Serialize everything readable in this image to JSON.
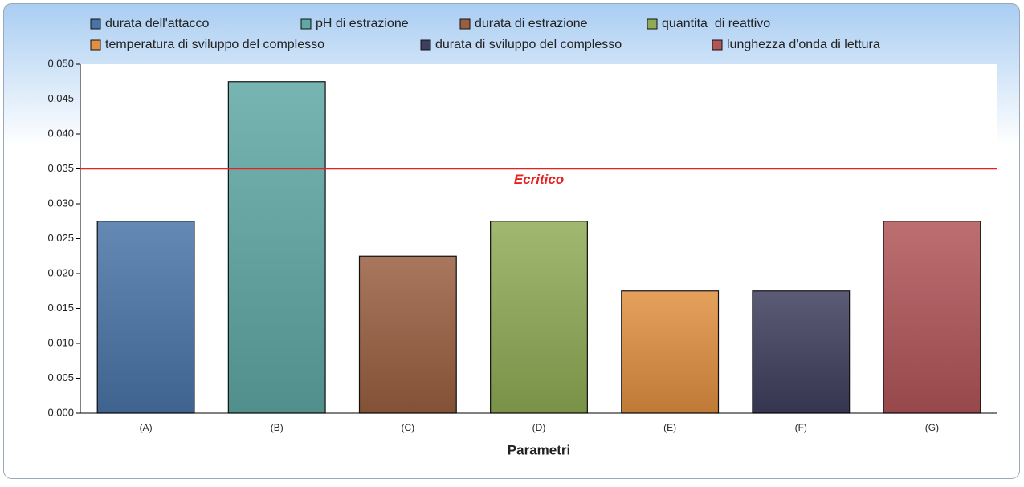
{
  "chart_data": {
    "type": "bar",
    "x_label": "Parametri",
    "categories": [
      "(A)",
      "(B)",
      "(C)",
      "(D)",
      "(E)",
      "(F)",
      "(G)"
    ],
    "series": [
      {
        "name": "durata dell'attacco",
        "color": "#4a74a8",
        "values": [
          0.0275,
          null,
          null,
          null,
          null,
          null,
          null
        ]
      },
      {
        "name": "pH di estrazione",
        "color": "#5fa8a5",
        "values": [
          null,
          0.0475,
          null,
          null,
          null,
          null,
          null
        ]
      },
      {
        "name": "durata di estrazione",
        "color": "#9a5f40",
        "values": [
          null,
          null,
          0.0225,
          null,
          null,
          null,
          null
        ]
      },
      {
        "name": "quantita  di reattivo",
        "color": "#8fab55",
        "values": [
          null,
          null,
          null,
          0.0275,
          null,
          null,
          null
        ]
      },
      {
        "name": "temperatura di sviluppo del complesso",
        "color": "#e0903f",
        "values": [
          null,
          null,
          null,
          null,
          0.0175,
          null,
          null
        ]
      },
      {
        "name": "durata di sviluppo del complesso",
        "color": "#3e3e5e",
        "values": [
          null,
          null,
          null,
          null,
          null,
          0.0175,
          null
        ]
      },
      {
        "name": "lunghezza d'onda di lettura",
        "color": "#b05558",
        "values": [
          null,
          null,
          null,
          null,
          null,
          null,
          0.0275
        ]
      }
    ],
    "ylim": [
      0,
      0.05
    ],
    "yticks": [
      {
        "value": 0,
        "label": "0.000"
      },
      {
        "value": 0.005,
        "label": "0.005"
      },
      {
        "value": 0.01,
        "label": "0.010"
      },
      {
        "value": 0.015,
        "label": "0.015"
      },
      {
        "value": 0.02,
        "label": "0.020"
      },
      {
        "value": 0.025,
        "label": "0.025"
      },
      {
        "value": 0.03,
        "label": "0.030"
      },
      {
        "value": 0.035,
        "label": "0.035"
      },
      {
        "value": 0.04,
        "label": "0.040"
      },
      {
        "value": 0.045,
        "label": "0.045"
      },
      {
        "value": 0.05,
        "label": "0.050"
      }
    ],
    "reference_lines": [
      {
        "value": 0.035,
        "label": "Ecritico",
        "color": "#e8201f"
      }
    ],
    "legend": "top"
  }
}
